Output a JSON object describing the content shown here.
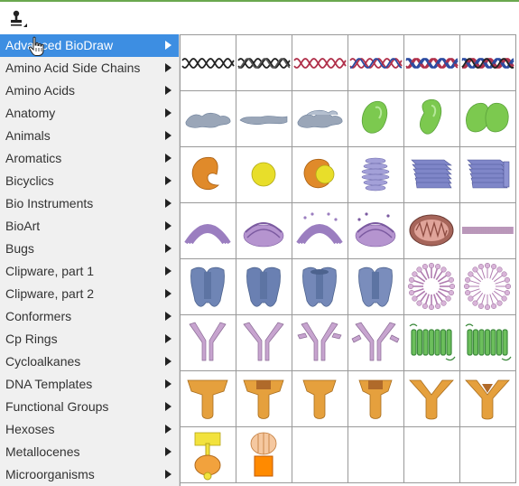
{
  "toolbar": {
    "tool_icon": "stamp-icon"
  },
  "menu": {
    "items": [
      {
        "label": "Advanced BioDraw",
        "active": true
      },
      {
        "label": "Amino Acid Side Chains"
      },
      {
        "label": "Amino Acids"
      },
      {
        "label": "Anatomy"
      },
      {
        "label": "Animals"
      },
      {
        "label": "Aromatics"
      },
      {
        "label": "Bicyclics"
      },
      {
        "label": "Bio Instruments"
      },
      {
        "label": "BioArt"
      },
      {
        "label": "Bugs"
      },
      {
        "label": "Clipware, part 1"
      },
      {
        "label": "Clipware, part 2"
      },
      {
        "label": "Conformers"
      },
      {
        "label": "Cp Rings"
      },
      {
        "label": "Cycloalkanes"
      },
      {
        "label": "DNA Templates"
      },
      {
        "label": "Functional Groups"
      },
      {
        "label": "Hexoses"
      },
      {
        "label": "Metallocenes"
      },
      {
        "label": "Microorganisms"
      }
    ]
  },
  "colors": {
    "accent": "#3d8ee2",
    "topline": "#6aa84f",
    "grid_border": "#999999"
  },
  "palette": {
    "rows": [
      [
        "dna-black-icon",
        "dna-black-double-icon",
        "dna-red-icon",
        "dna-red-blue-icon",
        "dna-red-blue-double-icon",
        "dna-red-blue-triple-icon"
      ],
      [
        "membrane-blob-icon",
        "membrane-flat-icon",
        "membrane-stack-icon",
        "green-leaf-icon",
        "green-bean-icon",
        "green-double-icon"
      ],
      [
        "orange-crescent-icon",
        "yellow-circle-icon",
        "orange-yellow-icon",
        "purple-golgi-icon",
        "blue-golgi-3d-icon",
        "blue-golgi-3d-double-icon"
      ],
      [
        "purple-er-arc-icon",
        "purple-er-stack-icon",
        "purple-er-arc-dots-icon",
        "purple-er-stack-dots-icon",
        "mitochondrion-icon",
        "membrane-strip-icon"
      ],
      [
        "blue-channel-icon",
        "blue-channel-front-icon",
        "blue-channel-open-icon",
        "blue-channel-closed-icon",
        "micelle-icon",
        "micelle-spiky-icon"
      ],
      [
        "antibody-icon",
        "antibody-wide-icon",
        "antibody-branched-icon",
        "antibody-branched-wide-icon",
        "receptor-helix-icon",
        "receptor-helix-double-icon"
      ],
      [
        "orange-receptor-icon",
        "orange-receptor-dark-icon",
        "orange-receptor-narrow-icon",
        "orange-receptor-tall-icon",
        "orange-receptor-y-icon",
        "orange-receptor-y-dark-icon"
      ],
      [
        "atp-synthase-yellow-icon",
        "atp-synthase-orange-icon",
        "",
        "",
        "",
        ""
      ]
    ]
  }
}
